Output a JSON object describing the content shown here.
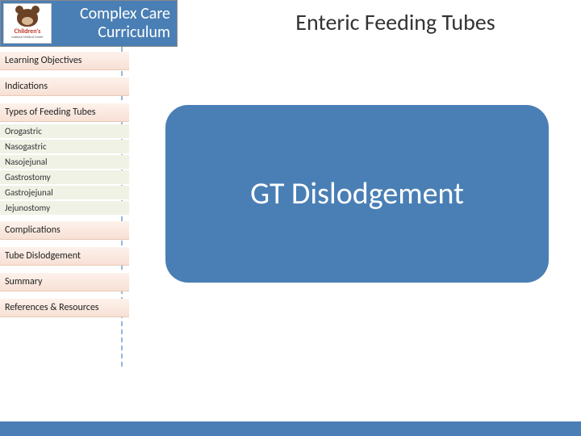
{
  "header": {
    "logo_name": "Children's",
    "logo_sub": "National Medical Center",
    "title_line1": "Complex Care",
    "title_line2": "Curriculum"
  },
  "page_title": "Enteric Feeding Tubes",
  "sidebar": {
    "sections": [
      {
        "label": "Learning Objectives",
        "type": "section"
      },
      {
        "label": "Indications",
        "type": "section"
      },
      {
        "label": "Types of Feeding Tubes",
        "type": "section"
      },
      {
        "label": "Orogastric",
        "type": "sub"
      },
      {
        "label": "Nasogastric",
        "type": "sub"
      },
      {
        "label": "Nasojejunal",
        "type": "sub"
      },
      {
        "label": "Gastrostomy",
        "type": "sub"
      },
      {
        "label": "Gastrojejunal",
        "type": "sub"
      },
      {
        "label": "Jejunostomy",
        "type": "sub"
      },
      {
        "label": "Complications",
        "type": "section"
      },
      {
        "label": "Tube Dislodgement",
        "type": "section"
      },
      {
        "label": "Summary",
        "type": "section"
      },
      {
        "label": "References & Resources",
        "type": "section"
      }
    ]
  },
  "content": {
    "bubble_text": "GT Dislodgement"
  },
  "colors": {
    "accent_blue": "#4a7fb5",
    "section_bg": "#f7e0d4",
    "sub_bg": "#f0f2e6",
    "dash_line": "#93b8d9"
  }
}
